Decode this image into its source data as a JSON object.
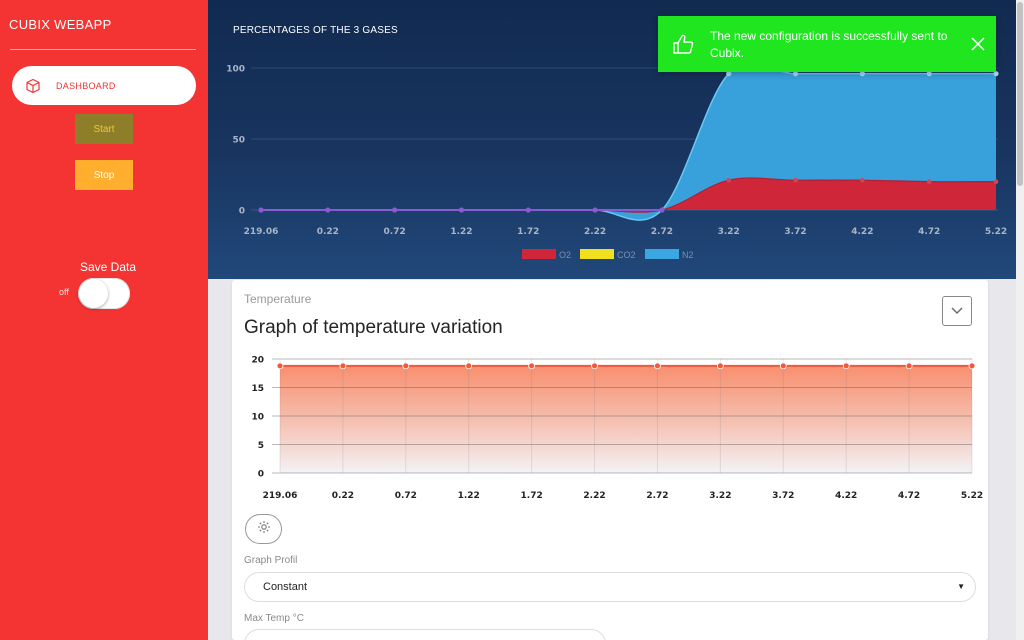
{
  "sidebar": {
    "brand": "CUBIX WEBAPP",
    "dashboard_label": "DASHBOARD",
    "dashboard_icon": "box-icon",
    "start_label": "Start",
    "stop_label": "Stop",
    "save_data_label": "Save Data",
    "toggle_state_label": "off"
  },
  "notification": {
    "message": "The new configuration is successfully sent to Cubix.",
    "icon": "thumbs-up-icon",
    "close_icon": "close-icon"
  },
  "gas_chart": {
    "title": "PERCENTAGES OF THE 3 GASES"
  },
  "card": {
    "category": "Temperature",
    "title": "Graph of temperature variation",
    "graph_profil_label": "Graph Profil",
    "graph_profil_value": "Constant",
    "max_temp_label": "Max Temp °C",
    "max_temp_value": ""
  },
  "colors": {
    "sidebar": "#f43333",
    "o2": "#d0263a",
    "co2": "#f0e01e",
    "n2": "#3aa6e2",
    "notification": "#1fe61f",
    "temp_line": "#f05a3c"
  },
  "chart_data": [
    {
      "type": "area",
      "title": "PERCENTAGES OF THE 3 GASES",
      "categories": [
        "219.06",
        "0.22",
        "0.72",
        "1.22",
        "1.72",
        "2.22",
        "2.72",
        "3.22",
        "3.72",
        "4.22",
        "4.72",
        "5.22"
      ],
      "yticks": [
        "0",
        "50",
        "100"
      ],
      "ylim": [
        0,
        100
      ],
      "stacked": true,
      "legend_position": "bottom",
      "series": [
        {
          "name": "O2",
          "color": "#d0263a",
          "values": [
            0,
            0,
            0,
            0,
            0,
            0,
            0,
            21,
            21,
            21,
            20,
            20
          ]
        },
        {
          "name": "CO2",
          "color": "#f0e01e",
          "values": [
            0,
            0,
            0,
            0,
            0,
            0,
            0,
            0,
            0,
            0,
            0,
            0
          ]
        },
        {
          "name": "N2",
          "color": "#3aa6e2",
          "values": [
            0,
            0,
            0,
            0,
            0,
            0,
            0,
            75,
            75,
            75,
            76,
            76
          ]
        }
      ]
    },
    {
      "type": "area",
      "title": "Graph of temperature variation",
      "categories": [
        "219.06",
        "0.22",
        "0.72",
        "1.22",
        "1.72",
        "2.22",
        "2.72",
        "3.22",
        "3.72",
        "4.22",
        "4.72",
        "5.22"
      ],
      "yticks": [
        "0",
        "5",
        "10",
        "15",
        "20"
      ],
      "ylim": [
        0,
        20
      ],
      "grid": true,
      "series": [
        {
          "color": "#f05a3c",
          "values": [
            18.8,
            18.8,
            18.8,
            18.8,
            18.8,
            18.8,
            18.8,
            18.8,
            18.8,
            18.8,
            18.8,
            18.8
          ]
        }
      ]
    }
  ]
}
